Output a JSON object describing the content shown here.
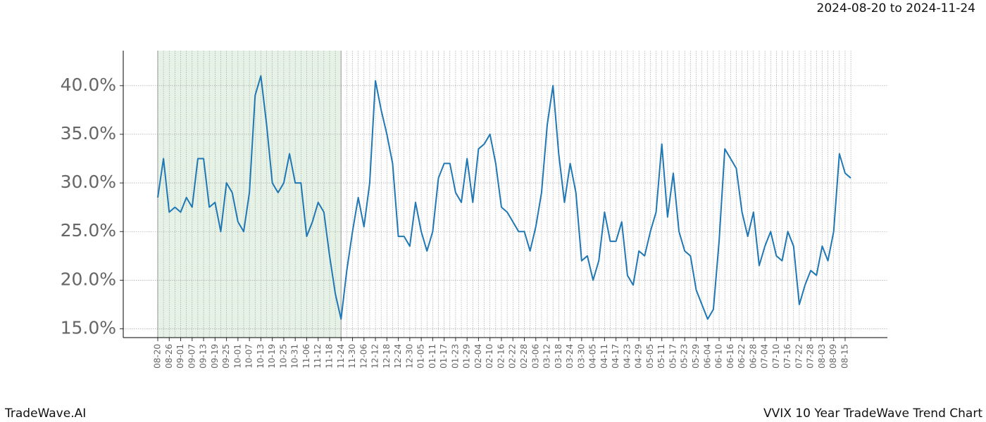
{
  "header": {
    "date_range": "2024-08-20 to 2024-11-24"
  },
  "footer": {
    "brand": "TradeWave.AI",
    "chart_name": "VVIX 10 Year TradeWave Trend Chart"
  },
  "chart_data": {
    "type": "line",
    "categories": [
      "08-20",
      null,
      "08-26",
      null,
      "09-01",
      null,
      "09-07",
      null,
      "09-13",
      null,
      "09-19",
      null,
      "09-25",
      null,
      "10-01",
      null,
      "10-07",
      null,
      "10-13",
      null,
      "10-19",
      null,
      "10-25",
      null,
      "10-31",
      null,
      "11-06",
      null,
      "11-12",
      null,
      "11-18",
      null,
      "11-24",
      null,
      "11-30",
      null,
      "12-06",
      null,
      "12-12",
      null,
      "12-18",
      null,
      "12-24",
      null,
      "12-30",
      null,
      "01-05",
      null,
      "01-11",
      null,
      "01-17",
      null,
      "01-23",
      null,
      "01-29",
      null,
      "02-04",
      null,
      "02-10",
      null,
      "02-16",
      null,
      "02-22",
      null,
      "02-28",
      null,
      "03-06",
      null,
      "03-12",
      null,
      "03-18",
      null,
      "03-24",
      null,
      "03-30",
      null,
      "04-05",
      null,
      "04-11",
      null,
      "04-17",
      null,
      "04-23",
      null,
      "04-29",
      null,
      "05-05",
      null,
      "05-11",
      null,
      "05-17",
      null,
      "05-23",
      null,
      "05-29",
      null,
      "06-04",
      null,
      "06-10",
      null,
      "06-16",
      null,
      "06-22",
      null,
      "06-28",
      null,
      "07-04",
      null,
      "07-10",
      null,
      "07-16",
      null,
      "07-22",
      null,
      "07-28",
      null,
      "08-03",
      null,
      "08-09",
      null,
      "08-15",
      null
    ],
    "series": [
      {
        "color": "#1f77b4",
        "values": [
          28.5,
          32.5,
          27,
          27.5,
          27,
          28.5,
          27.5,
          32.5,
          32.5,
          27.5,
          28,
          25,
          30,
          29,
          26,
          25,
          29,
          39,
          41,
          36,
          30,
          29,
          30,
          33,
          30,
          30,
          24.5,
          26,
          28,
          27,
          22.5,
          18.6,
          16,
          21,
          25,
          28.5,
          25.5,
          30,
          40.5,
          37.5,
          35,
          32,
          24.5,
          24.5,
          23.5,
          28,
          25,
          23,
          25,
          30.5,
          32,
          32,
          29,
          28,
          32.5,
          28,
          33.5,
          34,
          35,
          32,
          27.5,
          27,
          26,
          25,
          25,
          23,
          25.5,
          29,
          36,
          40,
          33,
          28,
          32,
          29,
          22,
          22.5,
          20,
          22,
          27,
          24,
          24,
          26,
          20.5,
          19.5,
          23,
          22.5,
          25,
          27,
          34,
          26.5,
          31,
          25,
          23,
          22.5,
          19,
          17.5,
          16,
          17,
          24,
          33.5,
          32.5,
          31.5,
          27,
          24.5,
          27,
          21.5,
          23.5,
          25,
          22.5,
          22,
          25,
          23.5,
          17.5,
          19.5,
          21,
          20.5,
          23.5,
          22,
          25,
          33,
          31,
          30.5
        ]
      }
    ],
    "ylim": [
      14.1,
      43.6
    ],
    "yticks": [
      {
        "value": 15,
        "label": "15.0%"
      },
      {
        "value": 20,
        "label": "20.0%"
      },
      {
        "value": 25,
        "label": "25.0%"
      },
      {
        "value": 30,
        "label": "30.0%"
      },
      {
        "value": 35,
        "label": "35.0%"
      },
      {
        "value": 40,
        "label": "40.0%"
      }
    ],
    "grid": true,
    "shaded_range": [
      "08-20",
      "11-24"
    ],
    "shade_color": "#e5f2e5"
  }
}
